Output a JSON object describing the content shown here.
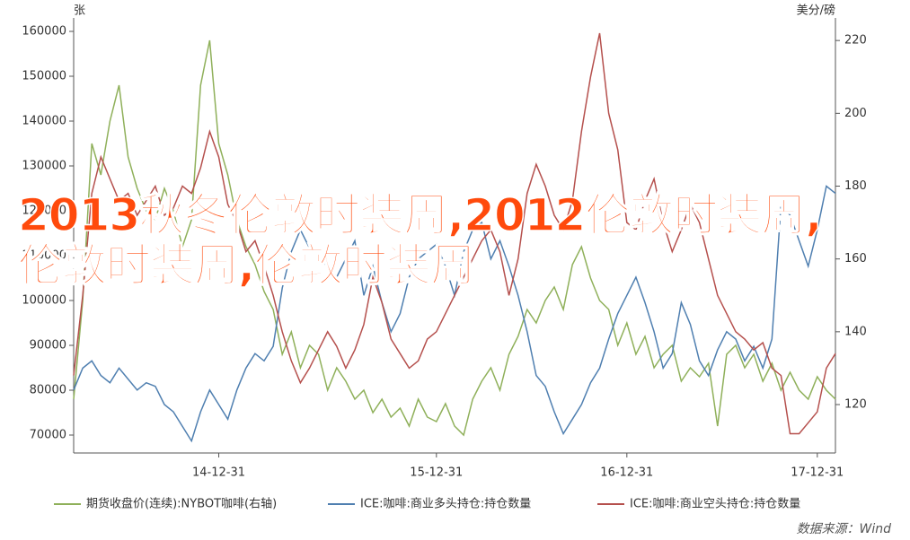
{
  "chart_data": {
    "type": "line",
    "y_label": "张",
    "y2_label": "美分/磅",
    "categories": [
      null,
      null,
      null,
      null,
      null,
      null,
      null,
      null,
      null,
      null,
      null,
      null,
      null,
      null,
      null,
      null,
      "14-12-31",
      null,
      null,
      null,
      null,
      null,
      null,
      null,
      null,
      null,
      null,
      null,
      null,
      null,
      null,
      null,
      null,
      null,
      null,
      null,
      null,
      null,
      null,
      null,
      "15-12-31",
      null,
      null,
      null,
      null,
      null,
      null,
      null,
      null,
      null,
      null,
      null,
      null,
      null,
      null,
      null,
      null,
      null,
      null,
      null,
      null,
      "16-12-31",
      null,
      null,
      null,
      null,
      null,
      null,
      null,
      null,
      null,
      null,
      null,
      null,
      null,
      null,
      null,
      null,
      null,
      null,
      null,
      null,
      "17-12-31",
      null,
      null
    ],
    "ylim": [
      66000,
      163000
    ],
    "yticks": [
      70000,
      80000,
      90000,
      100000,
      110000,
      120000,
      130000,
      140000,
      150000,
      160000
    ],
    "y2lim": [
      106.7,
      226.2
    ],
    "y2ticks": [
      120,
      140,
      160,
      180,
      200,
      220
    ],
    "series": [
      {
        "name": "期货收盘价(连续):NYBOT咖啡(右轴)",
        "color": "#8fb05a",
        "axis": "y",
        "values": [
          78000,
          100000,
          135000,
          128000,
          140000,
          148000,
          132000,
          125000,
          120000,
          118000,
          125000,
          120000,
          112000,
          118000,
          148000,
          158000,
          135000,
          128000,
          118000,
          112000,
          108000,
          102000,
          98000,
          88000,
          93000,
          85000,
          90000,
          88000,
          80000,
          85000,
          82000,
          78000,
          80000,
          75000,
          78000,
          74000,
          76000,
          72000,
          78000,
          74000,
          73000,
          77000,
          72000,
          70000,
          78000,
          82000,
          85000,
          80000,
          88000,
          92000,
          98000,
          95000,
          100000,
          103000,
          98000,
          108000,
          112000,
          105000,
          100000,
          98000,
          90000,
          95000,
          88000,
          92000,
          85000,
          88000,
          90000,
          82000,
          85000,
          83000,
          86000,
          72000,
          88000,
          90000,
          85000,
          88000,
          82000,
          86000,
          80000,
          84000,
          80000,
          78000,
          83000,
          80000,
          78000
        ]
      },
      {
        "name": "ICE:咖啡:商业多头持仓:持仓数量",
        "color": "#4f7fb0",
        "axis": "y2",
        "values": [
          124,
          130,
          132,
          128,
          126,
          130,
          127,
          124,
          126,
          125,
          120,
          118,
          114,
          110,
          118,
          124,
          120,
          116,
          124,
          130,
          134,
          132,
          136,
          152,
          162,
          168,
          163,
          160,
          158,
          155,
          160,
          165,
          150,
          158,
          148,
          140,
          145,
          155,
          160,
          162,
          164,
          158,
          150,
          162,
          168,
          170,
          160,
          165,
          158,
          150,
          140,
          128,
          125,
          118,
          112,
          116,
          120,
          126,
          130,
          138,
          145,
          150,
          155,
          148,
          140,
          130,
          134,
          148,
          142,
          132,
          128,
          135,
          140,
          138,
          132,
          136,
          130,
          138,
          175,
          172,
          165,
          158,
          168,
          180,
          178
        ]
      },
      {
        "name": "ICE:咖啡:商业空头持仓:持仓数量",
        "color": "#b5504d",
        "axis": "y2",
        "values": [
          128,
          150,
          178,
          188,
          182,
          176,
          178,
          172,
          176,
          180,
          172,
          174,
          180,
          178,
          185,
          195,
          188,
          175,
          170,
          162,
          165,
          158,
          150,
          140,
          132,
          126,
          130,
          135,
          140,
          136,
          130,
          135,
          142,
          155,
          148,
          138,
          134,
          130,
          132,
          138,
          140,
          145,
          150,
          155,
          160,
          165,
          168,
          162,
          150,
          160,
          178,
          186,
          180,
          172,
          168,
          176,
          195,
          210,
          222,
          200,
          190,
          170,
          168,
          176,
          182,
          170,
          162,
          168,
          175,
          170,
          160,
          150,
          145,
          140,
          138,
          135,
          137,
          130,
          128,
          112,
          112,
          115,
          118,
          130,
          134
        ]
      }
    ],
    "source": "数据来源：Wind",
    "overlay_text": "2013秋冬伦敦时装周,2012伦敦时装周,伦敦时装周,伦敦时装周"
  }
}
